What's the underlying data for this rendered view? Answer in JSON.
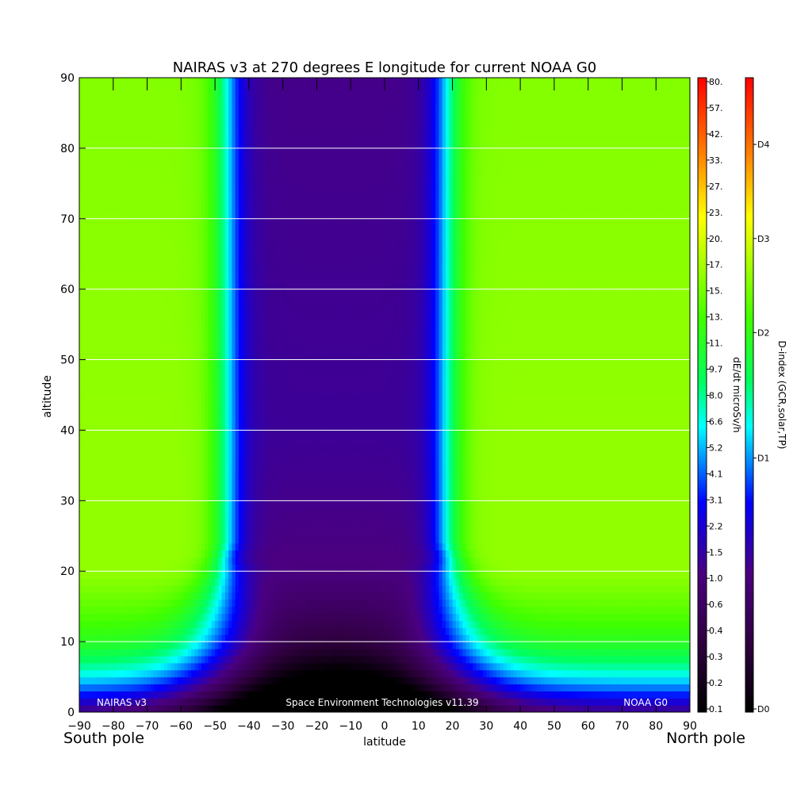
{
  "chart_data": {
    "type": "heatmap",
    "title": "NAIRAS v3 at 270 degrees E longitude for current NOAA G0",
    "xlabel": "latitude",
    "ylabel": "altitude",
    "xlim": [
      -90,
      90
    ],
    "ylim": [
      0,
      90
    ],
    "x_ticks": [
      "-90",
      "-80",
      "-70",
      "-60",
      "-50",
      "-40",
      "-30",
      "-20",
      "-10",
      "0",
      "10",
      "20",
      "30",
      "40",
      "50",
      "60",
      "70",
      "80",
      "90"
    ],
    "y_ticks": [
      "0",
      "10",
      "20",
      "30",
      "40",
      "50",
      "60",
      "70",
      "80",
      "90"
    ],
    "grid": "horizontal lines at 10, 20, 30, 40, 50, 60, 70, 80",
    "x_end_labels": {
      "left": "South pole",
      "right": "North pole"
    },
    "footer": {
      "left": "NAIRAS v3",
      "center": "Space Environment Technologies v11.39",
      "right": "NOAA G0"
    },
    "colorbar_dose": {
      "label": "dE/dt microSv/h",
      "ticks": [
        "0.1",
        "0.2",
        "0.3",
        "0.4",
        "0.6",
        "1.0",
        "1.5",
        "2.2",
        "3.1",
        "4.1",
        "5.2",
        "6.6",
        "8.0",
        "9.7",
        "11.",
        "13.",
        "15.",
        "17.",
        "20.",
        "23.",
        "27.",
        "33.",
        "42.",
        "57.",
        "80."
      ]
    },
    "colorbar_dindex": {
      "label": "D-index (GCR,solar,TP)",
      "ticks": [
        "D0",
        "D1",
        "D2",
        "D3",
        "D4"
      ],
      "positions": [
        0.0,
        0.4,
        0.6,
        0.75,
        0.9
      ]
    },
    "colormap": [
      "#000000",
      "#300040",
      "#4a0080",
      "#0000ff",
      "#00ffff",
      "#00ff50",
      "#40ff00",
      "#ffff00",
      "#ff8000",
      "#ff0000"
    ],
    "field_description_values": {
      "dose_scale_min": 0.1,
      "dose_scale_max": 80,
      "cutoff_latitudes_deg": [
        -50,
        22
      ],
      "plateau_altitude_low": 12,
      "plateau_altitude_high": 20
    }
  }
}
